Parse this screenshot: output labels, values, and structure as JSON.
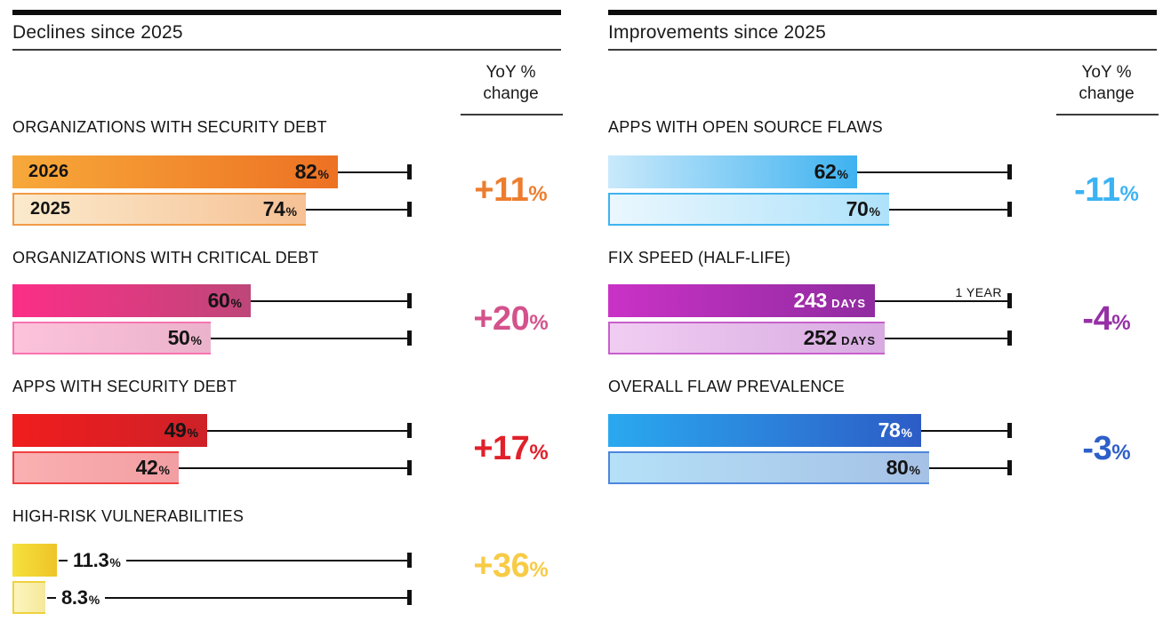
{
  "chart_data": [
    {
      "type": "bar",
      "orientation": "horizontal",
      "title": "Declines since 2025",
      "yoy_header_lines": [
        "YoY %",
        "change"
      ],
      "axis_reference": "tick marks represent 100%",
      "sections": [
        {
          "label": "ORGANIZATIONS WITH SECURITY DEBT",
          "yoy_change": "+11",
          "yoy_unit": "%",
          "color": "#ED7D2E",
          "axis_max": 100,
          "bars": [
            {
              "label": "2026",
              "value": 82,
              "value_text": "82",
              "unit": "%",
              "style": "dark",
              "fill": [
                "#F7A93A",
                "#ED7123"
              ],
              "text": "#141414"
            },
            {
              "label": "2025",
              "value": 74,
              "value_text": "74",
              "unit": "%",
              "style": "light",
              "fill": [
                "#FBEACC",
                "#F6C195"
              ],
              "text": "#141414",
              "border": "#F19A46"
            }
          ]
        },
        {
          "label": "ORGANIZATIONS WITH CRITICAL DEBT",
          "yoy_change": "+20",
          "yoy_unit": "%",
          "color": "#D4528C",
          "axis_max": 100,
          "bars": [
            {
              "value": 60,
              "value_text": "60",
              "unit": "%",
              "style": "dark",
              "fill": [
                "#FC2E87",
                "#BE4779"
              ],
              "text": "#141414"
            },
            {
              "value": 50,
              "value_text": "50",
              "unit": "%",
              "style": "light",
              "fill": [
                "#FCC3DB",
                "#EBB3CB"
              ],
              "text": "#141414",
              "border": "#F973B0"
            }
          ]
        },
        {
          "label": "APPS WITH SECURITY DEBT",
          "yoy_change": "+17",
          "yoy_unit": "%",
          "color": "#E1202A",
          "axis_max": 100,
          "bars": [
            {
              "value": 49,
              "value_text": "49",
              "unit": "%",
              "style": "dark",
              "fill": [
                "#F01D1D",
                "#CE2128"
              ],
              "text": "#141414"
            },
            {
              "value": 42,
              "value_text": "42",
              "unit": "%",
              "style": "light",
              "fill": [
                "#FAB0B2",
                "#F29EA2"
              ],
              "text": "#141414",
              "border": "#F04141"
            }
          ]
        },
        {
          "label": "HIGH-RISK VULNERABILITIES",
          "yoy_change": "+36",
          "yoy_unit": "%",
          "color": "#F7CB45",
          "axis_max": 100,
          "bars": [
            {
              "value": 11.3,
              "value_text": "11.3",
              "unit": "%",
              "style": "dark",
              "label_outside": true,
              "fill": [
                "#F5E13E",
                "#EEC428"
              ],
              "text": "#141414"
            },
            {
              "value": 8.3,
              "value_text": "8.3",
              "unit": "%",
              "style": "light",
              "label_outside": true,
              "fill": [
                "#FBF5BE",
                "#F6E89B"
              ],
              "text": "#141414",
              "border": "#EFD23E"
            }
          ]
        }
      ]
    },
    {
      "type": "bar",
      "orientation": "horizontal",
      "title": "Improvements since 2025",
      "yoy_header_lines": [
        "YoY %",
        "change"
      ],
      "axis_reference": "tick marks represent 100% (or 1 year for fix speed)",
      "sections": [
        {
          "label": "APPS WITH OPEN SOURCE FLAWS",
          "yoy_change": "-11",
          "yoy_unit": "%",
          "color": "#3BB3F3",
          "axis_max": 100,
          "bars": [
            {
              "value": 62,
              "value_text": "62",
              "unit": "%",
              "style": "dark",
              "fill": [
                "#C9E9FB",
                "#3EB2F0"
              ],
              "text": "#141414"
            },
            {
              "value": 70,
              "value_text": "70",
              "unit": "%",
              "style": "light",
              "fill": [
                "#EAF7FE",
                "#AEE2FA"
              ],
              "text": "#141414",
              "border": "#3FB3F0"
            }
          ]
        },
        {
          "label": "FIX SPEED (HALF-LIFE)",
          "yoy_change": "-4",
          "yoy_unit": "%",
          "color": "#9530A5",
          "axis_max": 365,
          "bars": [
            {
              "value": 243,
              "value_text": "243",
              "unit": "DAYS",
              "style": "dark",
              "fill": [
                "#CA32C6",
                "#902BA0"
              ],
              "text": "#FFFFFF",
              "annotation": "1 YEAR"
            },
            {
              "value": 252,
              "value_text": "252",
              "unit": "DAYS",
              "style": "light",
              "fill": [
                "#F1CDF2",
                "#D7ABE1"
              ],
              "text": "#141414",
              "border": "#C85FCC"
            }
          ]
        },
        {
          "label": "OVERALL FLAW PREVALENCE",
          "yoy_change": "-3",
          "yoy_unit": "%",
          "color": "#2D5FC9",
          "axis_max": 100,
          "bars": [
            {
              "value": 78,
              "value_text": "78",
              "unit": "%",
              "style": "dark",
              "fill": [
                "#2AA9EF",
                "#2D5CC6"
              ],
              "text": "#FFFFFF"
            },
            {
              "value": 80,
              "value_text": "80",
              "unit": "%",
              "style": "light",
              "fill": [
                "#B5E0F8",
                "#A5C1E5"
              ],
              "text": "#141414",
              "border": "#4D86DB"
            }
          ]
        }
      ]
    }
  ]
}
